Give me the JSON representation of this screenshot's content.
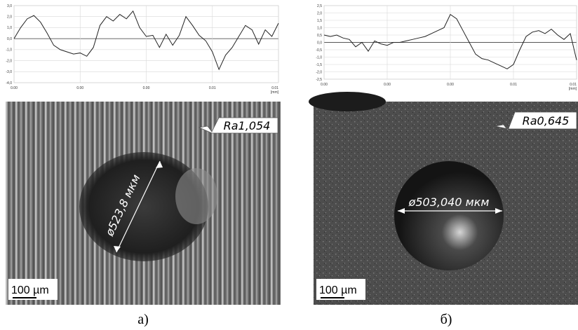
{
  "chart_data": [
    {
      "type": "line",
      "x_label": "[mm]",
      "color": "#222222",
      "grid": true,
      "x": [
        0,
        0.0002,
        0.0004,
        0.0006,
        0.0008,
        0.001,
        0.0012,
        0.0014,
        0.0016,
        0.0018,
        0.002,
        0.0022,
        0.0024,
        0.0026,
        0.0028,
        0.003,
        0.0032,
        0.0034,
        0.0036,
        0.0038,
        0.004,
        0.0042,
        0.0044,
        0.0046,
        0.0048,
        0.005,
        0.0052,
        0.0054,
        0.0056,
        0.0058,
        0.006,
        0.0062,
        0.0064,
        0.0066,
        0.0068,
        0.007,
        0.0072,
        0.0074,
        0.0076,
        0.0078,
        0.008
      ],
      "values": [
        0.0,
        1.0,
        1.8,
        2.1,
        1.5,
        0.5,
        -0.6,
        -1.0,
        -1.2,
        -1.4,
        -1.3,
        -1.6,
        -0.8,
        1.2,
        2.0,
        1.6,
        2.2,
        1.8,
        2.5,
        1.0,
        0.2,
        0.3,
        -0.8,
        0.4,
        -0.6,
        0.3,
        2.0,
        1.2,
        0.3,
        -0.2,
        -1.2,
        -2.8,
        -1.5,
        -0.8,
        0.2,
        1.2,
        0.8,
        -0.5,
        0.8,
        0.2,
        1.4
      ],
      "xlim": [
        0,
        0.008
      ],
      "xticks": [
        {
          "value": 0,
          "label": "0.00"
        },
        {
          "value": 0.002,
          "label": "0.00"
        },
        {
          "value": 0.004,
          "label": "0.00"
        },
        {
          "value": 0.006,
          "label": "0.01"
        },
        {
          "value": 0.008,
          "label": "0.01"
        }
      ],
      "ylim": [
        -4,
        3
      ],
      "yticks": [
        {
          "value": 3,
          "label": "3,0"
        },
        {
          "value": 2,
          "label": "2,0"
        },
        {
          "value": 1,
          "label": "1,0"
        },
        {
          "value": 0,
          "label": "0,0"
        },
        {
          "value": -1,
          "label": "-1,0"
        },
        {
          "value": -2,
          "label": "-2,0"
        },
        {
          "value": -3,
          "label": "-3,0"
        },
        {
          "value": -4,
          "label": "-4,0"
        }
      ]
    },
    {
      "type": "line",
      "x_label": "[mm]",
      "color": "#222222",
      "grid": true,
      "x": [
        0,
        0.0002,
        0.0004,
        0.0006,
        0.0008,
        0.001,
        0.0012,
        0.0014,
        0.0016,
        0.0018,
        0.002,
        0.0022,
        0.0024,
        0.0026,
        0.0028,
        0.003,
        0.0032,
        0.0034,
        0.0036,
        0.0038,
        0.004,
        0.0042,
        0.0044,
        0.0046,
        0.0048,
        0.005,
        0.0052,
        0.0054,
        0.0056,
        0.0058,
        0.006,
        0.0062,
        0.0064,
        0.0066,
        0.0068,
        0.007,
        0.0072,
        0.0074,
        0.0076,
        0.0078,
        0.008
      ],
      "values": [
        0.5,
        0.4,
        0.5,
        0.3,
        0.2,
        -0.3,
        0.0,
        -0.6,
        0.1,
        -0.1,
        -0.2,
        0.0,
        0.0,
        0.1,
        0.2,
        0.3,
        0.4,
        0.6,
        0.8,
        1.0,
        1.9,
        1.6,
        0.8,
        0.0,
        -0.8,
        -1.1,
        -1.2,
        -1.4,
        -1.6,
        -1.8,
        -1.5,
        -0.5,
        0.4,
        0.7,
        0.8,
        0.6,
        0.9,
        0.5,
        0.2,
        0.6,
        -1.2
      ],
      "xlim": [
        0,
        0.008
      ],
      "xticks": [
        {
          "value": 0,
          "label": "0.00"
        },
        {
          "value": 0.002,
          "label": "0.00"
        },
        {
          "value": 0.004,
          "label": "0.00"
        },
        {
          "value": 0.006,
          "label": "0.01"
        },
        {
          "value": 0.008,
          "label": "0.01"
        }
      ],
      "ylim": [
        -2.5,
        2.5
      ],
      "yticks": [
        {
          "value": 2.5,
          "label": "2,5"
        },
        {
          "value": 2,
          "label": "2,0"
        },
        {
          "value": 1.5,
          "label": "1,5"
        },
        {
          "value": 1,
          "label": "1,0"
        },
        {
          "value": 0.5,
          "label": "0,5"
        },
        {
          "value": 0,
          "label": "0,0"
        },
        {
          "value": -0.5,
          "label": "-0,5"
        },
        {
          "value": -1,
          "label": "-1,0"
        },
        {
          "value": -1.5,
          "label": "-1,5"
        },
        {
          "value": -2,
          "label": "-2,0"
        },
        {
          "value": -2.5,
          "label": "-2,5"
        }
      ]
    }
  ],
  "panels": [
    {
      "roughness": "Ra1,054",
      "diameter": "ø523,8 мкм",
      "scale_bar": "100 µm",
      "caption": "а)"
    },
    {
      "roughness": "Ra0,645",
      "diameter": "ø503,040 мкм",
      "scale_bar": "100 µm",
      "caption": "б)"
    }
  ]
}
